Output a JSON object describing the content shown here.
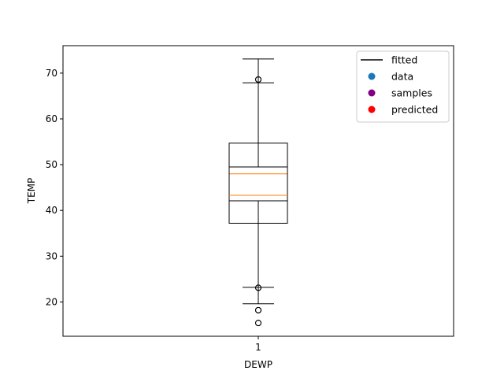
{
  "chart_data": {
    "type": "box",
    "xlabel": "DEWP",
    "ylabel": "TEMP",
    "ylim": [
      12.5,
      76
    ],
    "yticks": [
      20,
      30,
      40,
      50,
      60,
      70
    ],
    "categories": [
      "1"
    ],
    "boxes": [
      {
        "category": "1",
        "q1": 37.2,
        "q3": 54.7,
        "median": 48.0,
        "whisker_low": 19.6,
        "whisker_high": 73.1,
        "outliers": [
          68.6,
          23.1,
          18.2,
          15.4
        ],
        "color": "#000000",
        "median_color": "#ff7f0e"
      },
      {
        "category": "1",
        "q1": 42.1,
        "q3": 49.5,
        "median": 43.3,
        "whisker_low": 23.2,
        "whisker_high": 67.9,
        "outliers": [
          68.6,
          23.1,
          18.2,
          15.4
        ],
        "color": "#000000",
        "median_color": "#ff7f0e"
      }
    ],
    "legend": {
      "placement": "top-right",
      "entries": [
        {
          "label": "fitted",
          "marker": "line",
          "color": "#000000"
        },
        {
          "label": "data",
          "marker": "dot",
          "color": "#1f77b4"
        },
        {
          "label": "samples",
          "marker": "dot",
          "color": "#800080"
        },
        {
          "label": "predicted",
          "marker": "dot",
          "color": "#ff0000"
        }
      ]
    }
  }
}
